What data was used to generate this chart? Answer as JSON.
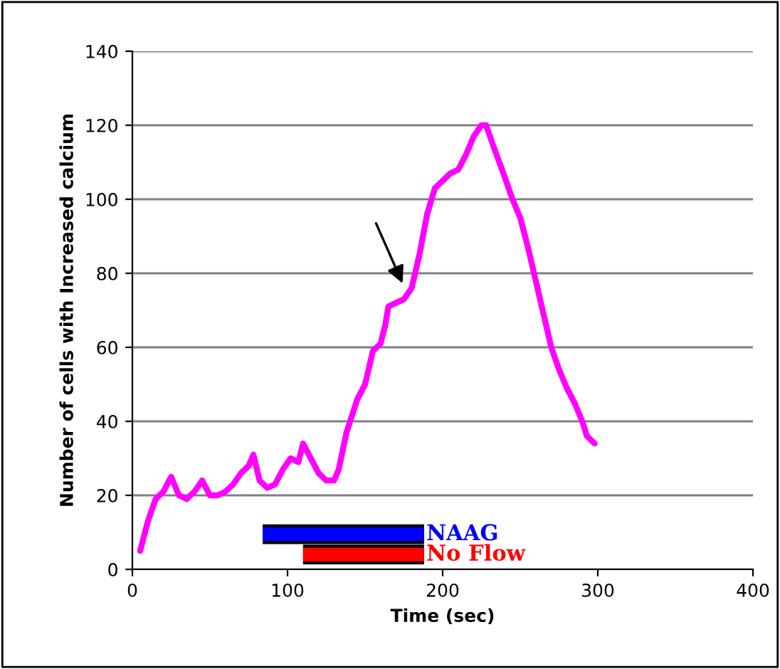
{
  "chart_data": {
    "type": "line",
    "xlabel": "Time (sec)",
    "ylabel": "Number of cells with Increased calcium",
    "xlim": [
      0,
      400
    ],
    "xticks": [
      0,
      100,
      200,
      300,
      400
    ],
    "ylim": [
      0,
      140
    ],
    "yticks": [
      0,
      20,
      40,
      60,
      80,
      100,
      120,
      140
    ],
    "grid": "y",
    "series": [
      {
        "color": "#ff00ff",
        "x": [
          5,
          10,
          15,
          20,
          25,
          30,
          35,
          40,
          45,
          50,
          55,
          60,
          65,
          70,
          75,
          78,
          82,
          87,
          92,
          97,
          102,
          107,
          110,
          115,
          120,
          125,
          130,
          133,
          138,
          145,
          150,
          155,
          160,
          163,
          165,
          170,
          175,
          180,
          185,
          190,
          195,
          200,
          205,
          210,
          215,
          220,
          225,
          228,
          233,
          240,
          245,
          250,
          255,
          260,
          265,
          270,
          275,
          280,
          285,
          290,
          293,
          298
        ],
        "values": [
          5,
          13,
          19,
          21,
          25,
          20,
          19,
          21,
          24,
          20,
          20,
          21,
          23,
          26,
          28,
          31,
          24,
          22,
          23,
          27,
          30,
          29,
          34,
          30,
          26,
          24,
          24,
          27,
          37,
          46,
          50,
          59,
          61,
          66,
          71,
          72,
          73,
          76,
          85,
          96,
          103,
          105,
          107,
          108,
          112,
          117,
          120,
          120,
          114,
          106,
          100,
          95,
          87,
          78,
          69,
          60,
          54,
          49,
          45,
          40,
          36,
          34
        ]
      },
      {
        "name": "NAAG",
        "color": "#0000ff",
        "x": [
          84,
          188
        ],
        "values": [
          9.5,
          9.5
        ]
      },
      {
        "name": "No Flow",
        "color": "#ff0000",
        "x": [
          110,
          188
        ],
        "values": [
          4,
          4
        ]
      }
    ]
  }
}
